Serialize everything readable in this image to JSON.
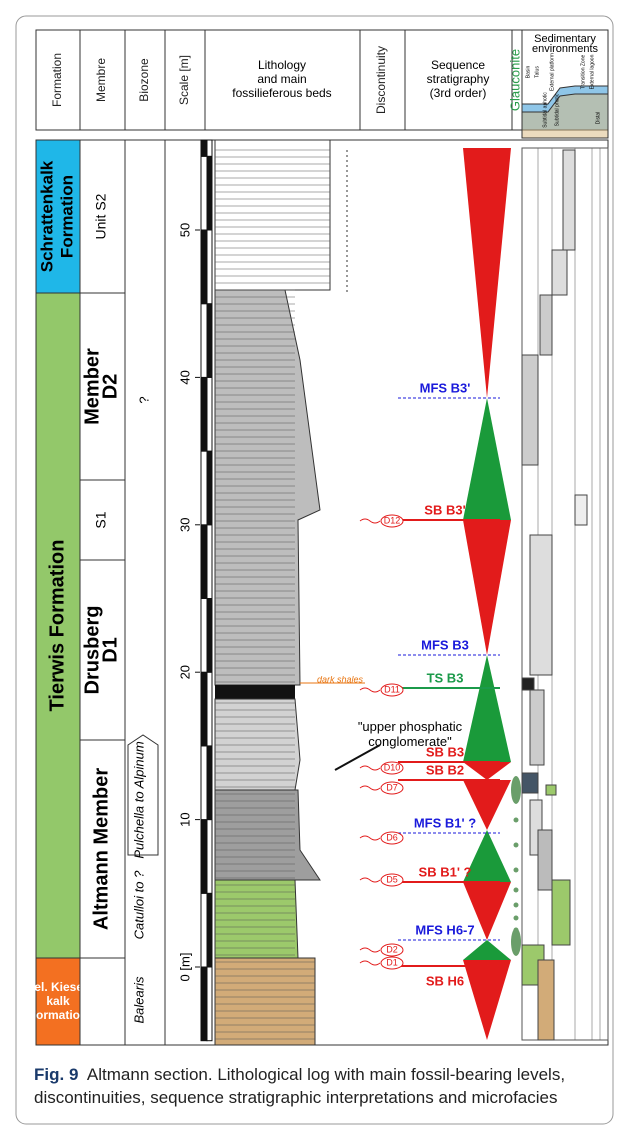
{
  "header": {
    "columns": [
      "Formation",
      "Membre",
      "Biozone",
      "Scale [m]",
      [
        "Lithology",
        "and main",
        "fossilieferous beds"
      ],
      "Discontinuity",
      [
        "Sequence",
        "stratigraphy",
        "(3rd order)"
      ],
      "Glauconite"
    ],
    "environments": {
      "title": [
        "Sedimentary",
        "environments"
      ],
      "labels": [
        "Basin",
        "Talus",
        "External platform",
        "Transition Zone",
        "External lagoon"
      ],
      "zones": [
        "Subtidal aphotic",
        "Subtidal photic",
        "Distal"
      ]
    }
  },
  "formations": [
    [
      "Schrattenkalk",
      "Formation"
    ],
    [
      "Tierwis Formation"
    ],
    [
      "Hel. Kiesel-",
      "kalk",
      "Formation"
    ]
  ],
  "members": [
    [
      "Unit S2"
    ],
    [
      "Member",
      "D2"
    ],
    [
      "S1"
    ],
    [
      "Drusberg",
      "D1"
    ],
    [
      "Altmann Member"
    ]
  ],
  "biozones": [
    "?",
    "Pulchella to Alpinum",
    "Catulloi to ?",
    "Balearis"
  ],
  "scale": {
    "ticks": [
      {
        "value": 0,
        "label": "0 [m]"
      },
      10,
      20,
      30,
      40,
      50
    ],
    "lim": [
      -5,
      56
    ]
  },
  "sequence": [
    {
      "label": "MFS B3'",
      "color": "#1a1adb"
    },
    {
      "label": "SB B3'",
      "color": "#e21b1b"
    },
    {
      "label": "MFS B3",
      "color": "#1a1adb"
    },
    {
      "label": "TS B3",
      "color": "#1b9a4a"
    },
    {
      "label": "SB B3",
      "color": "#e21b1b"
    },
    {
      "label": "SB B2",
      "color": "#e21b1b"
    },
    {
      "label": "MFS B1' ?",
      "color": "#1a1adb"
    },
    {
      "label": "SB B1' ?",
      "color": "#e21b1b"
    },
    {
      "label": "MFS H6-7",
      "color": "#1a1adb"
    },
    {
      "label": "SB H6",
      "color": "#e21b1b"
    }
  ],
  "discontinuities": [
    "D12",
    "D11",
    "D10",
    "D7",
    "D6",
    "D5",
    "D2",
    "D1"
  ],
  "annotations": [
    "dark shales",
    [
      "\"upper phosphatic",
      "conglomerate\""
    ]
  ],
  "caption": {
    "label": "Fig. 9",
    "text": "Altmann section. Lithological log with main fossil-bearing levels, discontinuities, sequence stratigraphic interpretations and microfacies"
  }
}
